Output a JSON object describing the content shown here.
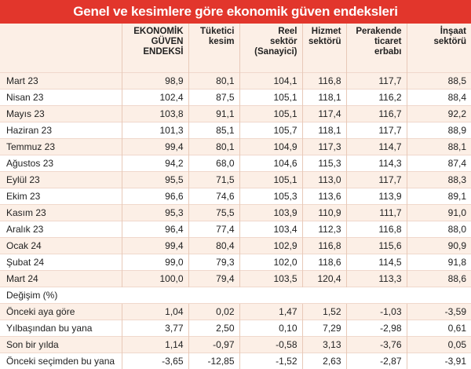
{
  "title": "Genel ve kesimlere göre ekonomik güven endeksleri",
  "columns": [
    "EKONOMİK\nGÜVEN\nENDEKSİ",
    "Tüketici\nkesim",
    "Reel\nsektör\n(Sanayici)",
    "Hizmet\nsektörü",
    "Perakende\nticaret\nerbabı",
    "İnşaat\nsektörü"
  ],
  "rows": [
    {
      "label": "Mart 23",
      "values": [
        "98,9",
        "80,1",
        "104,1",
        "116,8",
        "117,7",
        "88,5"
      ]
    },
    {
      "label": "Nisan 23",
      "values": [
        "102,4",
        "87,5",
        "105,1",
        "118,1",
        "116,2",
        "88,4"
      ]
    },
    {
      "label": "Mayıs 23",
      "values": [
        "103,8",
        "91,1",
        "105,1",
        "117,4",
        "116,7",
        "92,2"
      ]
    },
    {
      "label": "Haziran 23",
      "values": [
        "101,3",
        "85,1",
        "105,7",
        "118,1",
        "117,7",
        "88,9"
      ]
    },
    {
      "label": "Temmuz 23",
      "values": [
        "99,4",
        "80,1",
        "104,9",
        "117,3",
        "114,7",
        "88,1"
      ]
    },
    {
      "label": "Ağustos 23",
      "values": [
        "94,2",
        "68,0",
        "104,6",
        "115,3",
        "114,3",
        "87,4"
      ]
    },
    {
      "label": "Eylül 23",
      "values": [
        "95,5",
        "71,5",
        "105,1",
        "113,0",
        "117,7",
        "88,3"
      ]
    },
    {
      "label": "Ekim 23",
      "values": [
        "96,6",
        "74,6",
        "105,3",
        "113,6",
        "113,9",
        "89,1"
      ]
    },
    {
      "label": "Kasım 23",
      "values": [
        "95,3",
        "75,5",
        "103,9",
        "110,9",
        "111,7",
        "91,0"
      ]
    },
    {
      "label": "Aralık 23",
      "values": [
        "96,4",
        "77,4",
        "103,4",
        "112,3",
        "116,8",
        "88,0"
      ]
    },
    {
      "label": "Ocak 24",
      "values": [
        "99,4",
        "80,4",
        "102,9",
        "116,8",
        "115,6",
        "90,9"
      ]
    },
    {
      "label": "Şubat 24",
      "values": [
        "99,0",
        "79,3",
        "102,0",
        "118,6",
        "114,5",
        "91,8"
      ]
    },
    {
      "label": "Mart 24",
      "values": [
        "100,0",
        "79,4",
        "103,5",
        "120,4",
        "113,3",
        "88,6"
      ]
    }
  ],
  "change_section": "Değişim (%)",
  "change_rows": [
    {
      "label": "Önceki aya göre",
      "values": [
        "1,04",
        "0,02",
        "1,47",
        "1,52",
        "-1,03",
        "-3,59"
      ]
    },
    {
      "label": "Yılbaşından bu yana",
      "values": [
        "3,77",
        "2,50",
        "0,10",
        "7,29",
        "-2,98",
        "0,61"
      ]
    },
    {
      "label": "Son bir yılda",
      "values": [
        "1,14",
        "-0,97",
        "-0,58",
        "3,13",
        "-3,76",
        "0,05"
      ]
    },
    {
      "label": "Önceki seçimden bu yana",
      "values": [
        "-3,65",
        "-12,85",
        "-1,52",
        "2,63",
        "-2,87",
        "-3,91"
      ]
    }
  ]
}
